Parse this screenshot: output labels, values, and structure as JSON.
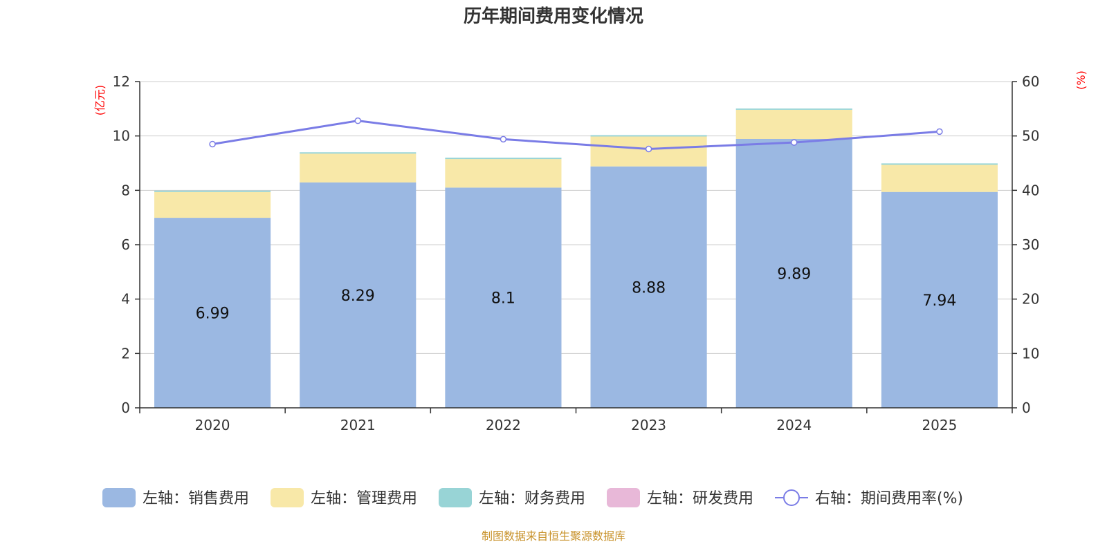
{
  "chart_data": {
    "type": "bar",
    "stacked": true,
    "title": "历年期间费用变化情况",
    "categories": [
      "2020",
      "2021",
      "2022",
      "2023",
      "2024",
      "2025"
    ],
    "left_axis": {
      "unit": "(亿元)",
      "ticks": [
        "0",
        "2",
        "4",
        "6",
        "8",
        "10",
        "12"
      ],
      "range": [
        0,
        12
      ]
    },
    "right_axis": {
      "unit": "(%)",
      "ticks": [
        "0",
        "10",
        "20",
        "30",
        "40",
        "50",
        "60"
      ],
      "range": [
        0,
        60
      ]
    },
    "series": [
      {
        "name": "左轴：销售费用",
        "type": "bar",
        "axis": "left",
        "color": "#9bb8e2",
        "values": [
          6.99,
          8.29,
          8.1,
          8.88,
          9.89,
          7.94
        ],
        "labels": [
          "6.99",
          "8.29",
          "8.1",
          "8.88",
          "9.89",
          "7.94"
        ]
      },
      {
        "name": "左轴：管理费用",
        "type": "bar",
        "axis": "left",
        "color": "#f8e8a8",
        "values": [
          0.95,
          1.06,
          1.05,
          1.1,
          1.07,
          1.0
        ]
      },
      {
        "name": "左轴：财务费用",
        "type": "bar",
        "axis": "left",
        "color": "#98d4d6",
        "values": [
          0.05,
          0.05,
          0.05,
          0.05,
          0.05,
          0.05
        ]
      },
      {
        "name": "左轴：研发费用",
        "type": "bar",
        "axis": "left",
        "color": "#e8b8d8",
        "values": [
          0,
          0,
          0,
          0,
          0,
          0
        ]
      },
      {
        "name": "右轴：期间费用率(%)",
        "type": "line",
        "axis": "right",
        "color": "#7a7ce6",
        "values": [
          48.5,
          52.8,
          49.4,
          47.6,
          48.8,
          50.8
        ]
      }
    ],
    "legend_position": "bottom",
    "grid": true
  },
  "source_text": "制图数据来自恒生聚源数据库"
}
